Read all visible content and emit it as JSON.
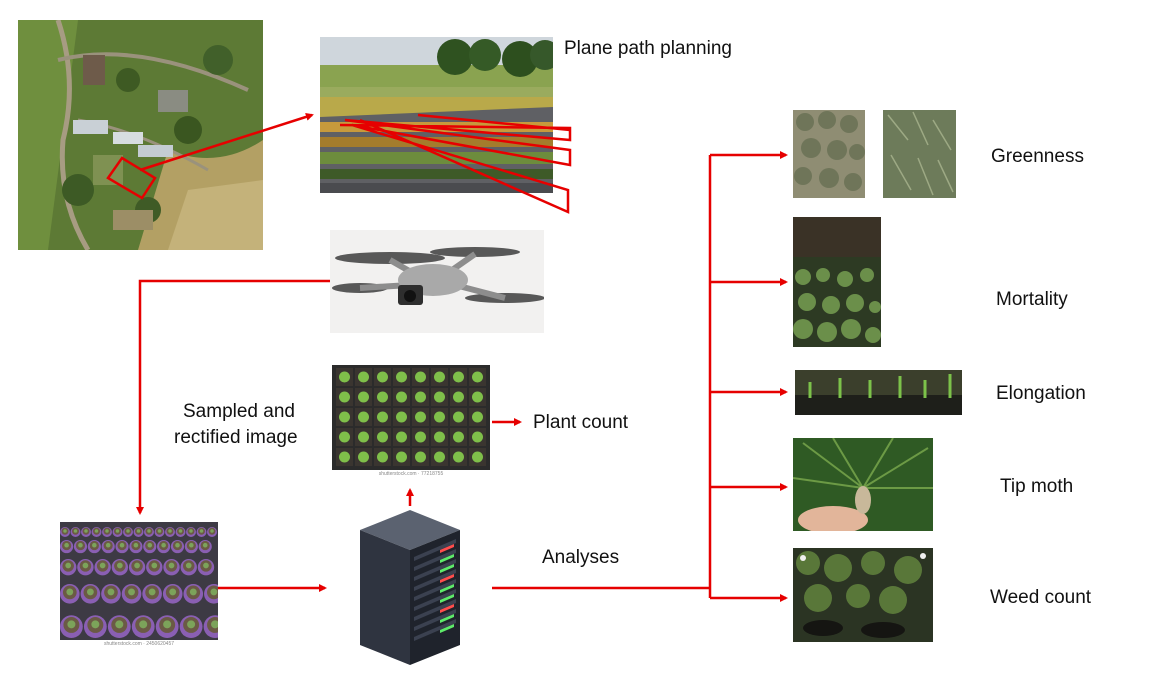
{
  "labels": {
    "plane_path_planning": "Plane path planning",
    "sampled_rectified_line1": "Sampled and",
    "sampled_rectified_line2": "rectified image",
    "plant_count": "Plant count",
    "analyses": "Analyses",
    "greenness": "Greenness",
    "mortality": "Mortality",
    "elongation": "Elongation",
    "tip_moth": "Tip moth",
    "weed_count": "Weed count"
  },
  "watermarks": {
    "seedling_tray": "shutterstock.com · 77218755",
    "nursery_pots": "shutterstock.com · 2450620457"
  },
  "colors": {
    "arrow": "#e60000"
  }
}
